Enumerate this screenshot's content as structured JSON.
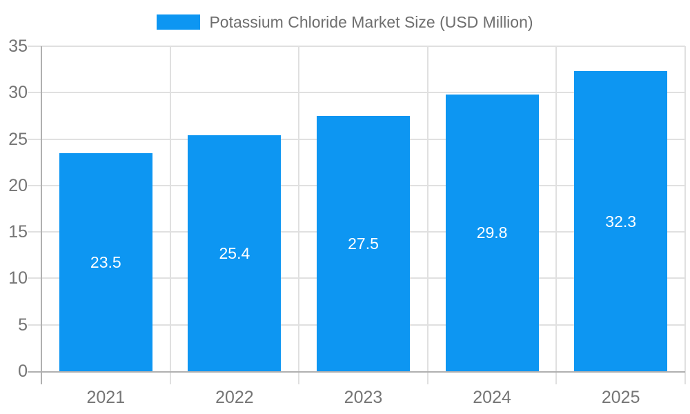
{
  "chart_data": {
    "type": "bar",
    "title": "Potassium Chloride Market Size (USD Million)",
    "categories": [
      "2021",
      "2022",
      "2023",
      "2024",
      "2025"
    ],
    "values": [
      23.5,
      25.4,
      27.5,
      29.8,
      32.3
    ],
    "value_labels": [
      "23.5",
      "25.4",
      "27.5",
      "29.8",
      "32.3"
    ],
    "xlabel": "",
    "ylabel": "",
    "ylim": [
      0,
      35
    ],
    "yticks": [
      0,
      5,
      10,
      15,
      20,
      25,
      30,
      35
    ],
    "grid": true,
    "legend_position": "top",
    "colors": {
      "bar": "#0d96f2",
      "grid": "#e0e0e0",
      "axis": "#b0b0b0",
      "tick_label": "#757575",
      "legend_text": "#6e6e6e",
      "value_label": "#ffffff",
      "background": "#ffffff"
    }
  }
}
